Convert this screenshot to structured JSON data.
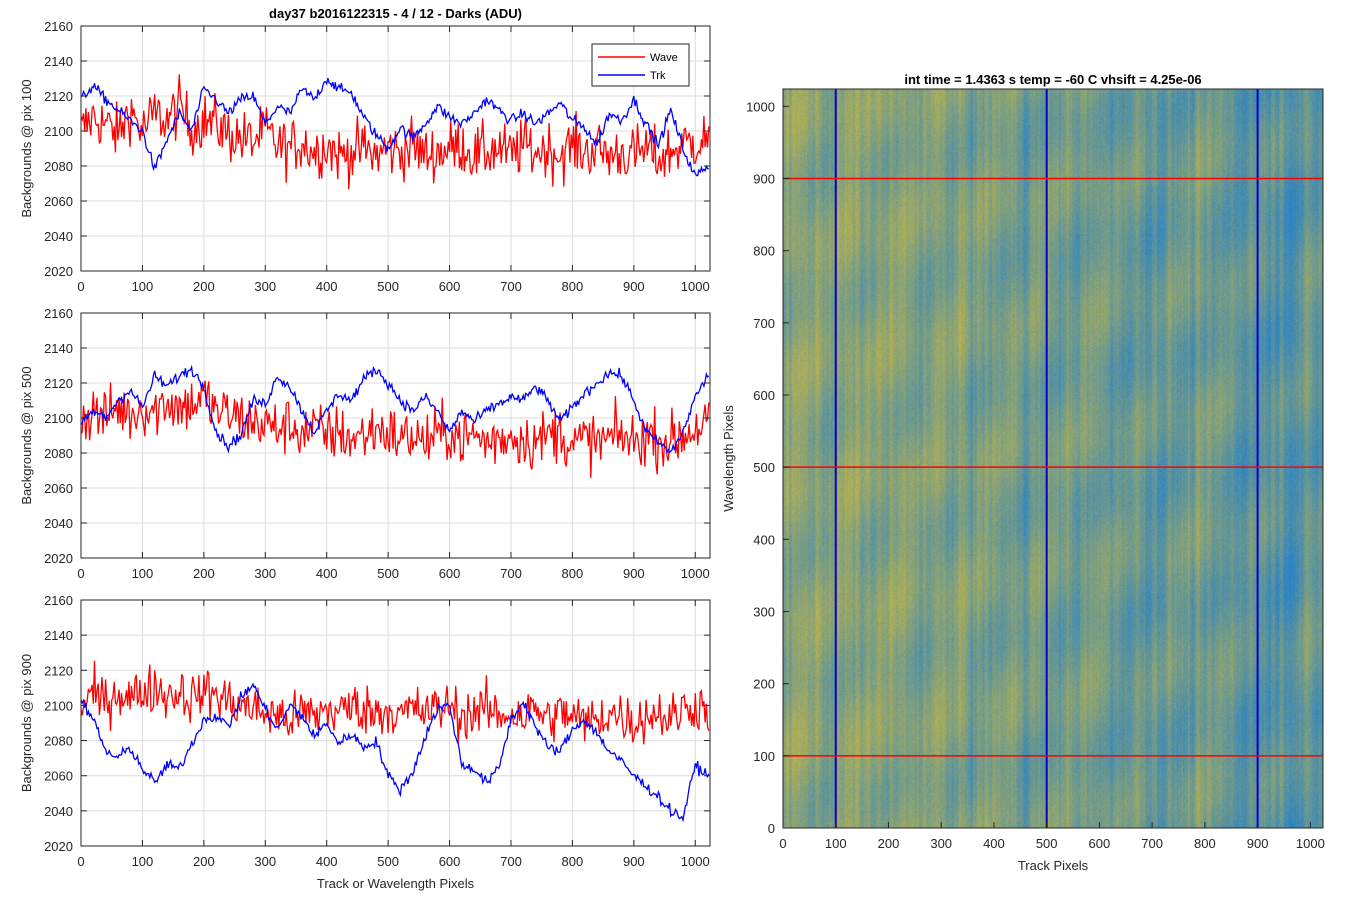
{
  "figure_title": "day37 b2016122315 - 4 / 12 - Darks (ADU)",
  "chart_data": [
    {
      "type": "line",
      "title": "day37 b2016122315 - 4 / 12 - Darks (ADU)",
      "xlabel": "",
      "ylabel": "Backgrounds @ pix 100",
      "xlim": [
        0,
        1024
      ],
      "ylim": [
        2020,
        2160
      ],
      "xticks": [
        0,
        100,
        200,
        300,
        400,
        500,
        600,
        700,
        800,
        900,
        1000
      ],
      "yticks": [
        2020,
        2040,
        2060,
        2080,
        2100,
        2120,
        2140,
        2160
      ],
      "grid": true,
      "legend": "top-right",
      "series": [
        {
          "name": "Wave",
          "color": "#ff0000",
          "x": [
            0,
            20,
            40,
            60,
            80,
            100,
            120,
            140,
            160,
            180,
            200,
            220,
            240,
            260,
            280,
            300,
            320,
            340,
            360,
            380,
            400,
            420,
            440,
            460,
            480,
            500,
            520,
            540,
            560,
            580,
            600,
            620,
            640,
            660,
            680,
            700,
            720,
            740,
            760,
            780,
            800,
            820,
            840,
            860,
            880,
            900,
            920,
            940,
            960,
            980,
            1000,
            1020
          ],
          "values": [
            2100,
            2108,
            2104,
            2098,
            2112,
            2100,
            2110,
            2106,
            2114,
            2102,
            2106,
            2104,
            2098,
            2096,
            2094,
            2100,
            2092,
            2090,
            2094,
            2088,
            2092,
            2086,
            2088,
            2090,
            2086,
            2090,
            2088,
            2092,
            2086,
            2088,
            2090,
            2092,
            2086,
            2088,
            2090,
            2086,
            2092,
            2088,
            2090,
            2086,
            2092,
            2088,
            2090,
            2086,
            2088,
            2086,
            2090,
            2084,
            2088,
            2092,
            2094,
            2096
          ],
          "noise_amplitude": 16
        },
        {
          "name": "Trk",
          "color": "#0000ff",
          "x": [
            0,
            20,
            40,
            60,
            80,
            100,
            120,
            140,
            160,
            180,
            200,
            220,
            240,
            260,
            280,
            300,
            320,
            340,
            360,
            380,
            400,
            420,
            440,
            460,
            480,
            500,
            520,
            540,
            560,
            580,
            600,
            620,
            640,
            660,
            680,
            700,
            720,
            740,
            760,
            780,
            800,
            820,
            840,
            860,
            880,
            900,
            920,
            940,
            960,
            980,
            1000,
            1020
          ],
          "values": [
            2118,
            2126,
            2118,
            2112,
            2106,
            2100,
            2078,
            2095,
            2110,
            2100,
            2124,
            2118,
            2110,
            2118,
            2120,
            2104,
            2114,
            2110,
            2124,
            2118,
            2130,
            2124,
            2122,
            2108,
            2098,
            2090,
            2102,
            2096,
            2104,
            2114,
            2108,
            2104,
            2110,
            2118,
            2112,
            2106,
            2110,
            2104,
            2110,
            2116,
            2106,
            2102,
            2092,
            2110,
            2106,
            2118,
            2104,
            2092,
            2112,
            2090,
            2074,
            2080
          ],
          "noise_amplitude": 5
        }
      ]
    },
    {
      "type": "line",
      "title": "",
      "xlabel": "",
      "ylabel": "Backgrounds @ pix 500",
      "xlim": [
        0,
        1024
      ],
      "ylim": [
        2020,
        2160
      ],
      "xticks": [
        0,
        100,
        200,
        300,
        400,
        500,
        600,
        700,
        800,
        900,
        1000
      ],
      "yticks": [
        2020,
        2040,
        2060,
        2080,
        2100,
        2120,
        2140,
        2160
      ],
      "grid": true,
      "series": [
        {
          "name": "Wave",
          "color": "#ff0000",
          "x": [
            0,
            20,
            40,
            60,
            80,
            100,
            120,
            140,
            160,
            180,
            200,
            220,
            240,
            260,
            280,
            300,
            320,
            340,
            360,
            380,
            400,
            420,
            440,
            460,
            480,
            500,
            520,
            540,
            560,
            580,
            600,
            620,
            640,
            660,
            680,
            700,
            720,
            740,
            760,
            780,
            800,
            820,
            840,
            860,
            880,
            900,
            920,
            940,
            960,
            980,
            1000,
            1020
          ],
          "values": [
            2098,
            2104,
            2100,
            2106,
            2102,
            2106,
            2104,
            2110,
            2106,
            2108,
            2112,
            2104,
            2102,
            2100,
            2098,
            2096,
            2094,
            2096,
            2092,
            2094,
            2090,
            2092,
            2088,
            2090,
            2094,
            2092,
            2088,
            2090,
            2086,
            2090,
            2092,
            2088,
            2090,
            2086,
            2088,
            2090,
            2088,
            2086,
            2090,
            2092,
            2084,
            2088,
            2086,
            2088,
            2090,
            2086,
            2090,
            2088,
            2086,
            2090,
            2094,
            2098
          ],
          "noise_amplitude": 16
        },
        {
          "name": "Trk",
          "color": "#0000ff",
          "x": [
            0,
            20,
            40,
            60,
            80,
            100,
            120,
            140,
            160,
            180,
            200,
            220,
            240,
            260,
            280,
            300,
            320,
            340,
            360,
            380,
            400,
            420,
            440,
            460,
            480,
            500,
            520,
            540,
            560,
            580,
            600,
            620,
            640,
            660,
            680,
            700,
            720,
            740,
            760,
            780,
            800,
            820,
            840,
            860,
            880,
            900,
            920,
            940,
            960,
            980,
            1000,
            1020
          ],
          "values": [
            2096,
            2104,
            2100,
            2110,
            2116,
            2106,
            2124,
            2118,
            2124,
            2128,
            2118,
            2092,
            2084,
            2090,
            2110,
            2108,
            2124,
            2118,
            2104,
            2092,
            2104,
            2114,
            2110,
            2122,
            2128,
            2120,
            2110,
            2104,
            2112,
            2104,
            2092,
            2104,
            2098,
            2104,
            2108,
            2112,
            2110,
            2118,
            2110,
            2098,
            2106,
            2114,
            2120,
            2126,
            2124,
            2110,
            2092,
            2086,
            2080,
            2092,
            2112,
            2124
          ],
          "noise_amplitude": 5
        }
      ]
    },
    {
      "type": "line",
      "title": "",
      "xlabel": "Track or Wavelength Pixels",
      "ylabel": "Backgrounds @ pix 900",
      "xlim": [
        0,
        1024
      ],
      "ylim": [
        2020,
        2160
      ],
      "xticks": [
        0,
        100,
        200,
        300,
        400,
        500,
        600,
        700,
        800,
        900,
        1000
      ],
      "yticks": [
        2020,
        2040,
        2060,
        2080,
        2100,
        2120,
        2140,
        2160
      ],
      "grid": true,
      "series": [
        {
          "name": "Wave",
          "color": "#ff0000",
          "x": [
            0,
            20,
            40,
            60,
            80,
            100,
            120,
            140,
            160,
            180,
            200,
            220,
            240,
            260,
            280,
            300,
            320,
            340,
            360,
            380,
            400,
            420,
            440,
            460,
            480,
            500,
            520,
            540,
            560,
            580,
            600,
            620,
            640,
            660,
            680,
            700,
            720,
            740,
            760,
            780,
            800,
            820,
            840,
            860,
            880,
            900,
            920,
            940,
            960,
            980,
            1000,
            1020
          ],
          "values": [
            2100,
            2106,
            2102,
            2108,
            2104,
            2108,
            2110,
            2106,
            2108,
            2104,
            2108,
            2106,
            2102,
            2100,
            2098,
            2096,
            2094,
            2092,
            2096,
            2094,
            2098,
            2096,
            2100,
            2098,
            2096,
            2098,
            2094,
            2098,
            2096,
            2098,
            2100,
            2094,
            2096,
            2098,
            2094,
            2096,
            2094,
            2098,
            2092,
            2096,
            2094,
            2090,
            2092,
            2096,
            2094,
            2090,
            2094,
            2096,
            2092,
            2098,
            2100,
            2098
          ],
          "noise_amplitude": 14
        },
        {
          "name": "Trk",
          "color": "#0000ff",
          "x": [
            0,
            20,
            40,
            60,
            80,
            100,
            120,
            140,
            160,
            180,
            200,
            220,
            240,
            260,
            280,
            300,
            320,
            340,
            360,
            380,
            400,
            420,
            440,
            460,
            480,
            500,
            520,
            540,
            560,
            580,
            600,
            620,
            640,
            660,
            680,
            700,
            720,
            740,
            760,
            780,
            800,
            820,
            840,
            860,
            880,
            900,
            920,
            940,
            960,
            980,
            1000,
            1020
          ],
          "values": [
            2102,
            2092,
            2074,
            2070,
            2076,
            2064,
            2056,
            2066,
            2064,
            2078,
            2092,
            2094,
            2088,
            2104,
            2112,
            2098,
            2086,
            2100,
            2094,
            2082,
            2090,
            2078,
            2084,
            2076,
            2080,
            2060,
            2052,
            2062,
            2082,
            2098,
            2100,
            2066,
            2064,
            2056,
            2064,
            2092,
            2102,
            2088,
            2076,
            2074,
            2086,
            2092,
            2084,
            2074,
            2068,
            2060,
            2054,
            2048,
            2040,
            2036,
            2066,
            2060
          ],
          "noise_amplitude": 5
        }
      ]
    },
    {
      "type": "heatmap",
      "title": "int time = 1.4363 s    temp = -60 C    vhsift = 4.25e-06",
      "xlabel": "Track Pixels",
      "ylabel": "Wavelength Pixels",
      "xlim": [
        0,
        1024
      ],
      "ylim": [
        0,
        1024
      ],
      "xticks": [
        0,
        100,
        200,
        300,
        400,
        500,
        600,
        700,
        800,
        900,
        1000
      ],
      "yticks": [
        0,
        100,
        200,
        300,
        400,
        500,
        600,
        700,
        800,
        900,
        1000
      ],
      "colormap": "parula",
      "vertical_markers": {
        "values": [
          100,
          500,
          900
        ],
        "color": "#0000cc"
      },
      "horizontal_markers": {
        "values": [
          100,
          500,
          900
        ],
        "color": "#ff0000"
      }
    }
  ]
}
